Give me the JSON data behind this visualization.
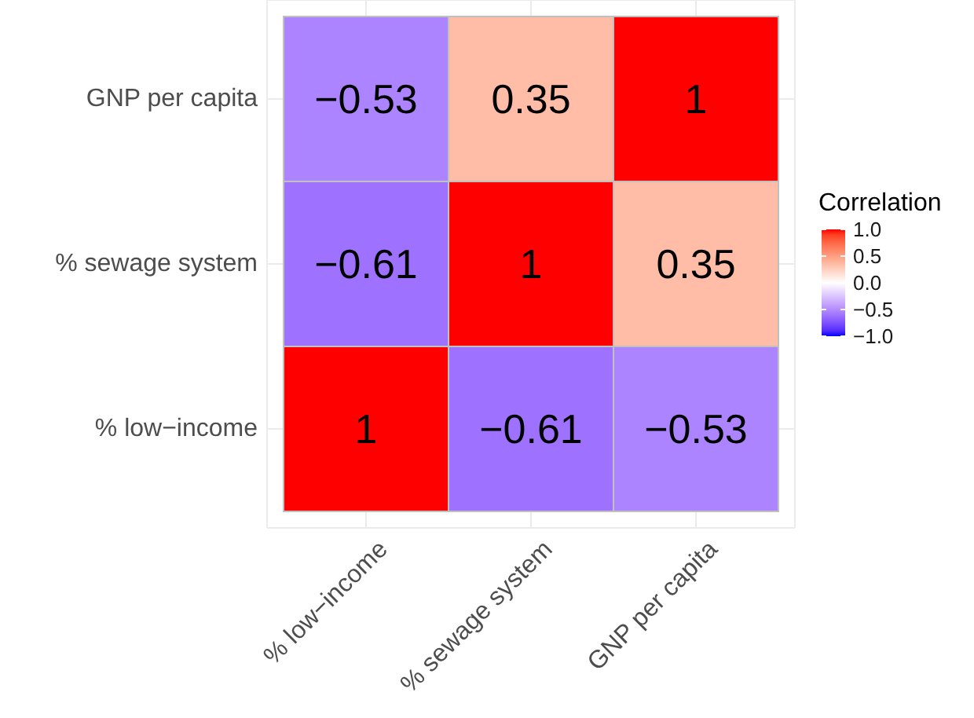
{
  "chart_data": {
    "type": "heatmap",
    "categories": [
      "% low−income",
      "% sewage system",
      "GNP per capita"
    ],
    "y_categories": [
      "GNP per capita",
      "% sewage system",
      "% low−income"
    ],
    "cells": [
      [
        -0.53,
        0.35,
        1
      ],
      [
        -0.61,
        1,
        0.35
      ],
      [
        1,
        -0.61,
        -0.53
      ]
    ],
    "data_labels": true,
    "colors": [
      "#0000ff",
      "#ffffff",
      "#ff0000"
    ],
    "clabel": "Correlation",
    "clim": [
      -1,
      1
    ],
    "cticks": [
      {
        "value": 1,
        "label": "1.0"
      },
      {
        "value": 0.5,
        "label": "0.5"
      },
      {
        "value": 0,
        "label": "0.0"
      },
      {
        "value": -0.5,
        "label": "−0.5"
      },
      {
        "value": -1,
        "label": "−1.0"
      }
    ],
    "grid": true
  }
}
